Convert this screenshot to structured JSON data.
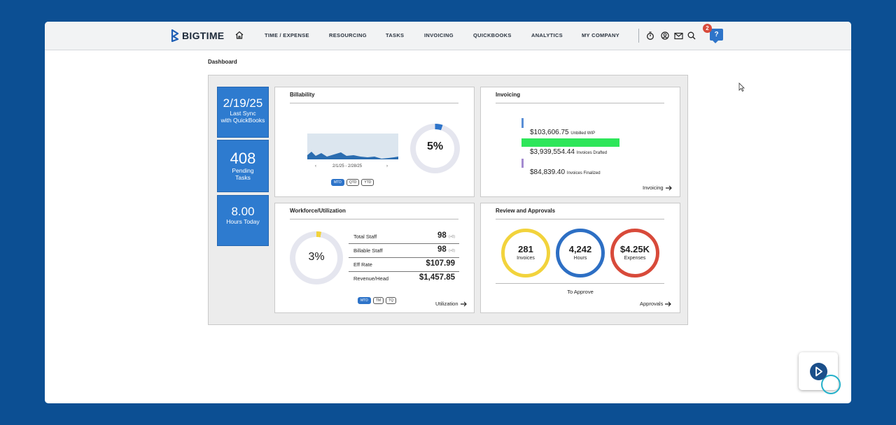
{
  "app": {
    "brand": "BIGTIME"
  },
  "nav": {
    "items": [
      "TIME / EXPENSE",
      "RESOURCING",
      "TASKS",
      "INVOICING",
      "QUICKBOOKS",
      "ANALYTICS",
      "MY COMPANY"
    ],
    "notification_count": "2",
    "help_label": "?"
  },
  "icons": [
    "home-icon",
    "stopwatch-icon",
    "user-icon",
    "mail-icon",
    "search-icon",
    "help-icon"
  ],
  "colors": {
    "brand_blue": "#2e7bcf",
    "invoices_yellow": "#f2d33c",
    "hours_blue": "#2d6fc4",
    "expenses_red": "#d84a3a",
    "drafted_green": "#2ee65a"
  },
  "breadcrumb": "Dashboard",
  "tiles": [
    {
      "big": "2/19/25",
      "line1": "Last Sync",
      "line2": "with QuickBooks"
    },
    {
      "big": "408",
      "line1": "Pending",
      "line2": "Tasks"
    },
    {
      "big": "8.00",
      "line1": "Hours Today",
      "line2": ""
    }
  ],
  "billability": {
    "title": "Billability",
    "date_range": "2/1/25 - 2/28/25",
    "percent": "5%",
    "percent_value": 0.05,
    "periods": [
      "MTD",
      "QTD",
      "YTD"
    ],
    "active_period": "MTD"
  },
  "invoicing": {
    "title": "Invoicing",
    "rows": [
      {
        "amount": "$103,606.75",
        "label": "Unbilled WIP"
      },
      {
        "amount": "$3,939,554.44",
        "label": "Invoices Drafted"
      },
      {
        "amount": "$84,839.40",
        "label": "Invoices Finalized"
      }
    ],
    "link": "Invoicing"
  },
  "workforce": {
    "title": "Workforce/Utilization",
    "percent": "3%",
    "percent_value": 0.03,
    "rows": [
      {
        "label": "Total Staff",
        "value": "98",
        "tag": "(+0)"
      },
      {
        "label": "Billable Staff",
        "value": "98",
        "tag": "(+0)"
      },
      {
        "label": "Eff Rate",
        "value": "$107.99",
        "tag": ""
      },
      {
        "label": "Revenue/Head",
        "value": "$1,457.85",
        "tag": ""
      }
    ],
    "periods": [
      "MTD",
      "TM",
      "TQ"
    ],
    "active_period": "MTD",
    "link": "Utilization"
  },
  "review": {
    "title": "Review and Approvals",
    "items": [
      {
        "value": "281",
        "label": "Invoices"
      },
      {
        "value": "4,242",
        "label": "Hours"
      },
      {
        "value": "$4.25K",
        "label": "Expenses"
      }
    ],
    "caption": "To Approve",
    "link": "Approvals"
  }
}
